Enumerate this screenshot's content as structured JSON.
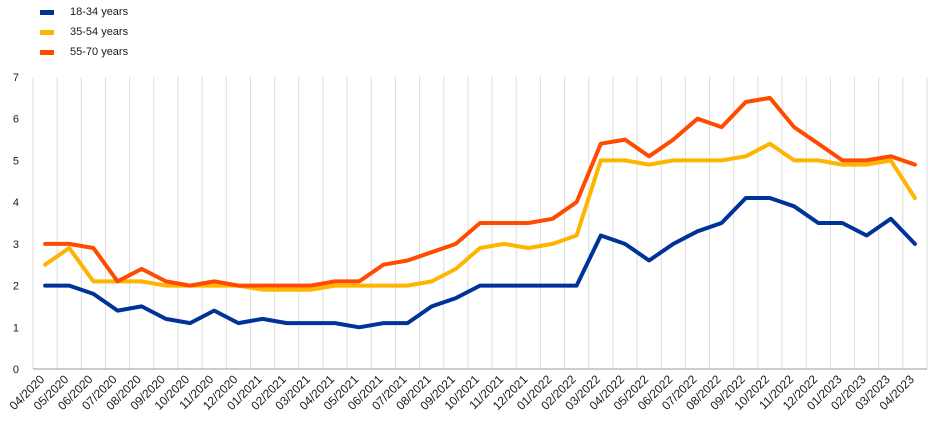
{
  "chart_data": {
    "type": "line",
    "legend_position": "top-left",
    "grid": "vertical",
    "ylim": [
      0,
      7
    ],
    "yticks": [
      0,
      1,
      2,
      3,
      4,
      5,
      6,
      7
    ],
    "categories": [
      "04/2020",
      "05/2020",
      "06/2020",
      "07/2020",
      "08/2020",
      "09/2020",
      "10/2020",
      "11/2020",
      "12/2020",
      "01/2021",
      "02/2021",
      "03/2021",
      "04/2021",
      "05/2021",
      "06/2021",
      "07/2021",
      "08/2021",
      "09/2021",
      "10/2021",
      "11/2021",
      "12/2021",
      "01/2022",
      "02/2022",
      "03/2022",
      "04/2022",
      "05/2022",
      "06/2022",
      "07/2022",
      "08/2022",
      "09/2022",
      "10/2022",
      "11/2022",
      "12/2022",
      "01/2023",
      "02/2023",
      "03/2023",
      "04/2023"
    ],
    "series": [
      {
        "name": "18-34 years",
        "color": "#003399",
        "values": [
          2.0,
          2.0,
          1.8,
          1.4,
          1.5,
          1.2,
          1.1,
          1.4,
          1.1,
          1.2,
          1.1,
          1.1,
          1.1,
          1.0,
          1.1,
          1.1,
          1.5,
          1.7,
          2.0,
          2.0,
          2.0,
          2.0,
          2.0,
          3.2,
          3.0,
          2.6,
          3.0,
          3.3,
          3.5,
          4.1,
          4.1,
          3.9,
          3.5,
          3.5,
          3.2,
          3.6,
          3.0
        ]
      },
      {
        "name": "35-54 years",
        "color": "#FFB400",
        "values": [
          2.5,
          2.9,
          2.1,
          2.1,
          2.1,
          2.0,
          2.0,
          2.0,
          2.0,
          1.9,
          1.9,
          1.9,
          2.0,
          2.0,
          2.0,
          2.0,
          2.1,
          2.4,
          2.9,
          3.0,
          2.9,
          3.0,
          3.2,
          5.0,
          5.0,
          4.9,
          5.0,
          5.0,
          5.0,
          5.1,
          5.4,
          5.0,
          5.0,
          4.9,
          4.9,
          5.0,
          4.1
        ]
      },
      {
        "name": "55-70 years",
        "color": "#FF4B00",
        "values": [
          3.0,
          3.0,
          2.9,
          2.1,
          2.4,
          2.1,
          2.0,
          2.1,
          2.0,
          2.0,
          2.0,
          2.0,
          2.1,
          2.1,
          2.5,
          2.6,
          2.8,
          3.0,
          3.5,
          3.5,
          3.5,
          3.6,
          4.0,
          5.4,
          5.5,
          5.1,
          5.5,
          6.0,
          5.8,
          6.4,
          6.5,
          5.8,
          5.4,
          5.0,
          5.0,
          5.1,
          4.9
        ]
      }
    ]
  }
}
